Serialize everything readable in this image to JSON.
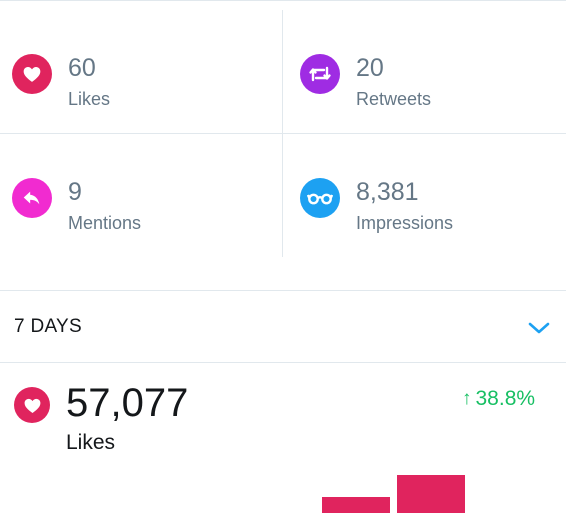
{
  "colors": {
    "likes": "#e0245e",
    "retweets": "#9f2ce3",
    "mentions": "#f12bd0",
    "impressions": "#1da1f2",
    "positive_change": "#17bf63",
    "chevron": "#1da1f2"
  },
  "stats": [
    {
      "icon": "heart-icon",
      "value": "60",
      "label": "Likes"
    },
    {
      "icon": "retweet-icon",
      "value": "20",
      "label": "Retweets"
    },
    {
      "icon": "reply-icon",
      "value": "9",
      "label": "Mentions"
    },
    {
      "icon": "glasses-icon",
      "value": "8,381",
      "label": "Impressions"
    }
  ],
  "period": {
    "label": "7 DAYS",
    "icon": "chevron-down-icon"
  },
  "summary": {
    "icon": "heart-icon",
    "value": "57,077",
    "label": "Likes",
    "change_arrow": "↑",
    "change": "38.8%"
  },
  "chart_data": {
    "type": "bar",
    "values": [
      16,
      38
    ]
  }
}
